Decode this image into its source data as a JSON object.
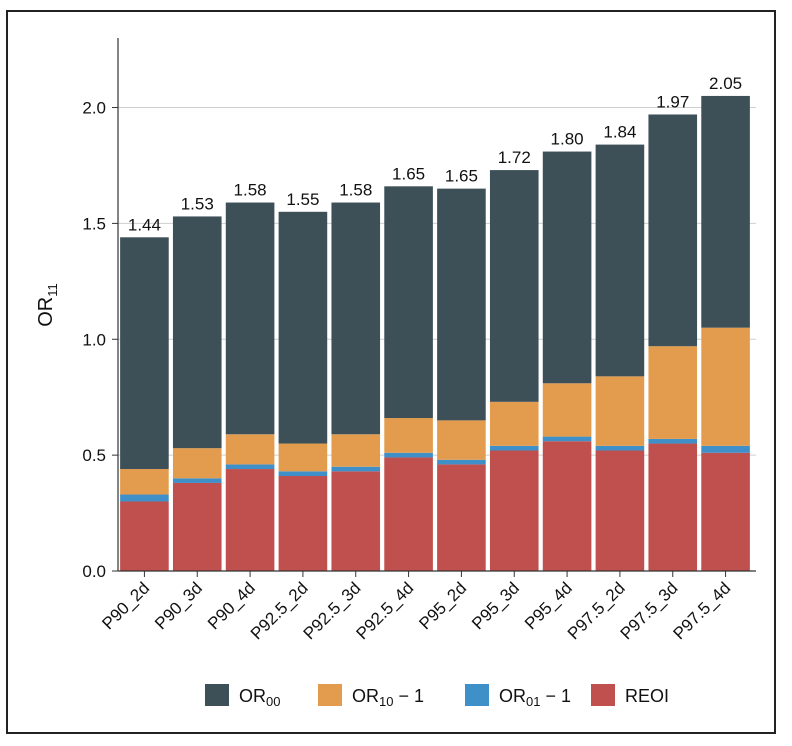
{
  "chart_data": {
    "type": "bar",
    "stacked": true,
    "categories": [
      "P90_2d",
      "P90_3d",
      "P90_4d",
      "P92.5_2d",
      "P92.5_3d",
      "P92.5_4d",
      "P95_2d",
      "P95_3d",
      "P95_4d",
      "P97.5_2d",
      "P97.5_3d",
      "P97.5_4d"
    ],
    "series": [
      {
        "name": "REOI",
        "color": "#c0504d",
        "values": [
          0.3,
          0.38,
          0.44,
          0.41,
          0.43,
          0.49,
          0.46,
          0.52,
          0.56,
          0.52,
          0.55,
          0.51
        ]
      },
      {
        "name": "OR01 − 1",
        "name_main": "OR",
        "name_sub": "01",
        "name_suffix": " − 1",
        "color": "#3f8fc9",
        "values": [
          0.03,
          0.02,
          0.02,
          0.02,
          0.02,
          0.02,
          0.02,
          0.02,
          0.02,
          0.02,
          0.02,
          0.03
        ]
      },
      {
        "name": "OR10 − 1",
        "name_main": "OR",
        "name_sub": "10",
        "name_suffix": " − 1",
        "color": "#e39c4d",
        "values": [
          0.11,
          0.13,
          0.13,
          0.12,
          0.14,
          0.15,
          0.17,
          0.19,
          0.23,
          0.3,
          0.4,
          0.51
        ]
      },
      {
        "name": "OR00",
        "name_main": "OR",
        "name_sub": "00",
        "name_suffix": "",
        "color": "#3d5058",
        "values": [
          1.0,
          1.0,
          1.0,
          1.0,
          1.0,
          1.0,
          1.0,
          1.0,
          1.0,
          1.0,
          1.0,
          1.0
        ]
      }
    ],
    "totals": [
      "1.44",
      "1.53",
      "1.58",
      "1.55",
      "1.58",
      "1.65",
      "1.65",
      "1.72",
      "1.80",
      "1.84",
      "1.97",
      "2.05"
    ],
    "ylabel": "OR11",
    "ylabel_main": "OR",
    "ylabel_sub": "11",
    "ylim": [
      0,
      2.3
    ],
    "yticks": [
      "0.0",
      "0.5",
      "1.0",
      "1.5",
      "2.0"
    ],
    "ytick_values": [
      0,
      0.5,
      1.0,
      1.5,
      2.0
    ],
    "grid": true,
    "legend_position": "bottom",
    "legend_order": [
      3,
      2,
      1,
      0
    ]
  }
}
